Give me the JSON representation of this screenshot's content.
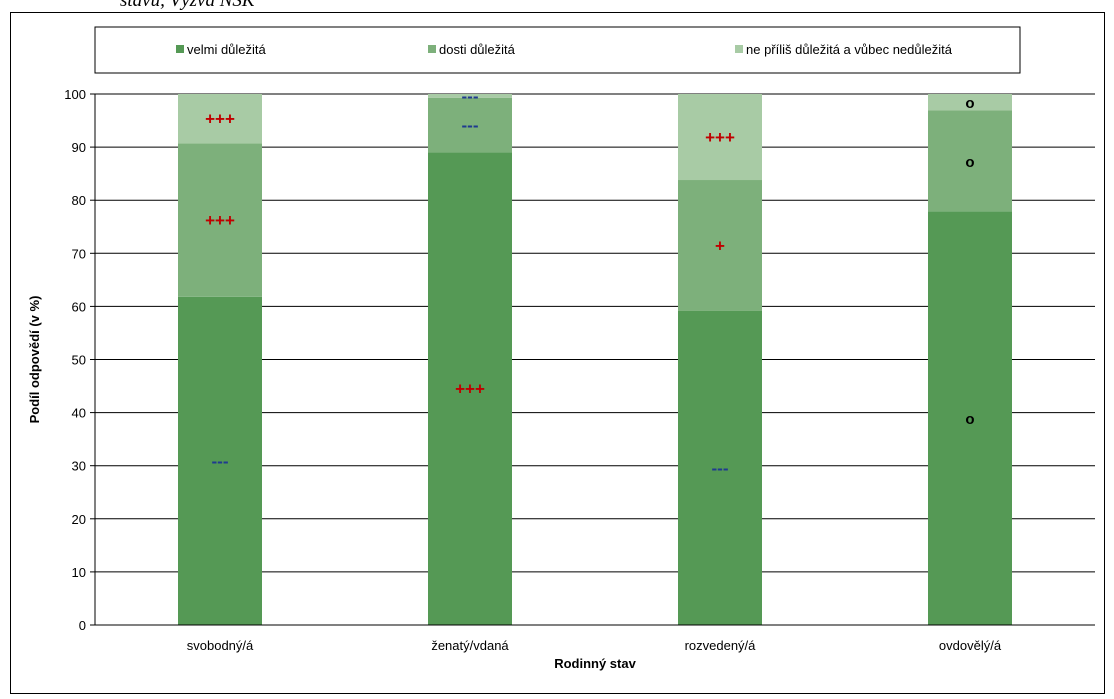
{
  "caption_fragment": "stavu, Výzva NSK",
  "chart_data": {
    "type": "bar",
    "stacked": true,
    "categories": [
      "svobodný/á",
      "ženatý/vdaná",
      "rozvedený/á",
      "ovdovělý/á"
    ],
    "series": [
      {
        "name": "velmi důležitá",
        "color": "#559955",
        "values": [
          61.8,
          89.0,
          59.2,
          77.9
        ]
      },
      {
        "name": "dosti důležitá",
        "color": "#7db07b",
        "values": [
          28.9,
          10.3,
          24.6,
          19.0
        ]
      },
      {
        "name": "ne příliš důležitá a vůbec nedůležitá",
        "color": "#a8cba5",
        "values": [
          9.3,
          0.7,
          16.2,
          3.1
        ]
      }
    ],
    "significance": [
      [
        "---",
        "+++",
        "+++"
      ],
      [
        "+++",
        "---",
        "---"
      ],
      [
        "---",
        "+",
        "+++"
      ],
      [
        "o",
        "o",
        "o"
      ]
    ],
    "xlabel": "Rodinný stav",
    "ylabel": "Podíl odpovědí (v %)",
    "ylim": [
      0,
      100
    ],
    "yticks": [
      0,
      10,
      20,
      30,
      40,
      50,
      60,
      70,
      80,
      90,
      100
    ],
    "grid": true,
    "legend": "top"
  }
}
